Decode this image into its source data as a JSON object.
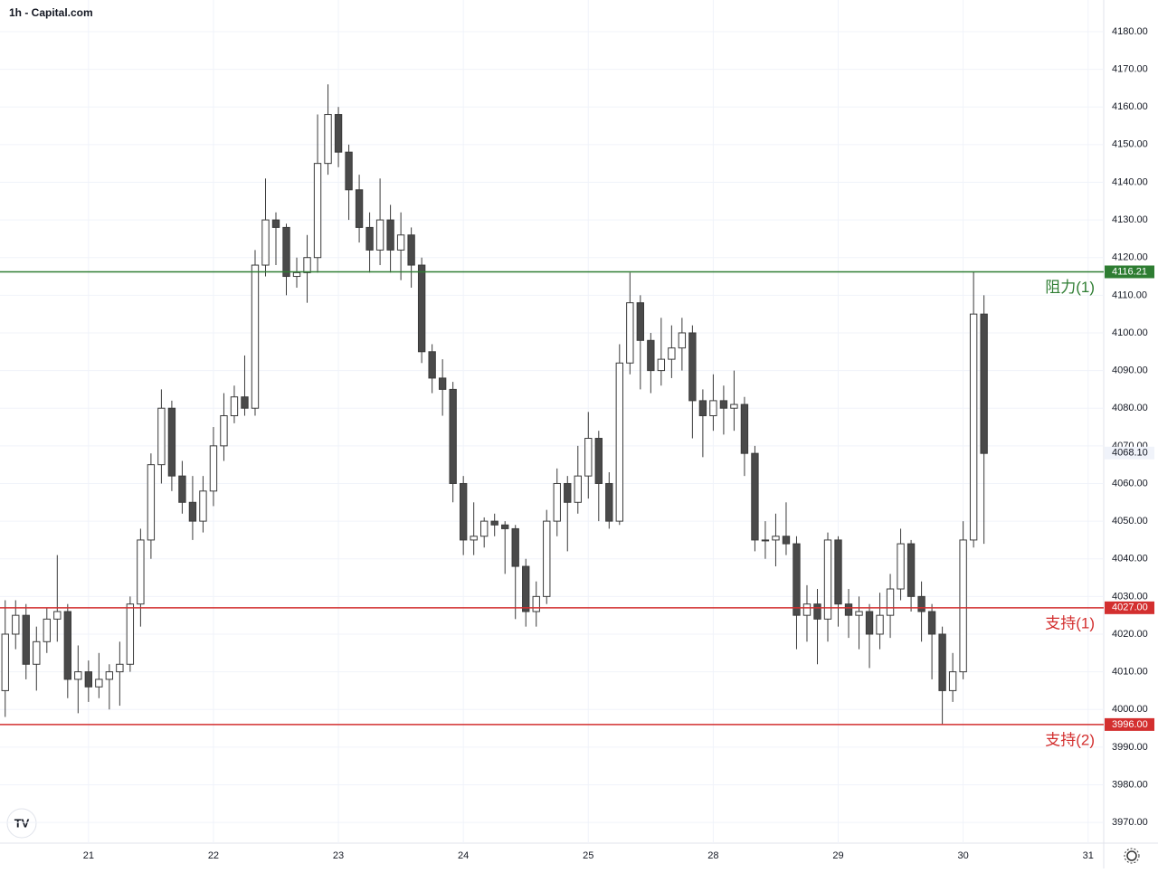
{
  "chart_data": {
    "type": "candlestick",
    "title": "1h - Capital.com",
    "open": [
      4005,
      4020,
      4025,
      4012,
      4018,
      4024,
      4026,
      4008,
      4010,
      4006,
      4008,
      4010,
      4012,
      4028,
      4045,
      4065,
      4080,
      4062,
      4055,
      4050,
      4058,
      4070,
      4078,
      4083,
      4080,
      4118,
      4130,
      4128,
      4115,
      4116,
      4120,
      4145,
      4158,
      4148,
      4138,
      4128,
      4122,
      4130,
      4122,
      4126,
      4118,
      4095,
      4088,
      4085,
      4060,
      4045,
      4046,
      4050,
      4049,
      4048,
      4038,
      4026,
      4030,
      4050,
      4060,
      4055,
      4062,
      4072,
      4060,
      4050,
      4092,
      4108,
      4098,
      4090,
      4093,
      4096,
      4100,
      4082,
      4078,
      4082,
      4080,
      4081,
      4068,
      4045,
      4045,
      4046,
      4044,
      4025,
      4028,
      4024,
      4045,
      4028,
      4025,
      4026,
      4020,
      4025,
      4032,
      4044,
      4030,
      4026,
      4020,
      4005,
      4010,
      4045,
      4105
    ],
    "high": [
      4029,
      4029,
      4028,
      4022,
      4027,
      4041,
      4028,
      4017,
      4013,
      4015,
      4012,
      4018,
      4030,
      4048,
      4068,
      4085,
      4082,
      4066,
      4062,
      4062,
      4075,
      4084,
      4086,
      4094,
      4122,
      4141,
      4132,
      4129,
      4120,
      4126,
      4158,
      4166,
      4160,
      4150,
      4142,
      4132,
      4141,
      4134,
      4132,
      4128,
      4120,
      4097,
      4093,
      4087,
      4062,
      4055,
      4051,
      4052,
      4050,
      4049,
      4040,
      4034,
      4053,
      4064,
      4062,
      4070,
      4079,
      4074,
      4063,
      4097,
      4116,
      4110,
      4100,
      4104,
      4102,
      4104,
      4102,
      4085,
      4089,
      4086,
      4090,
      4083,
      4070,
      4050,
      4052,
      4055,
      4046,
      4033,
      4032,
      4047,
      4046,
      4032,
      4030,
      4028,
      4031,
      4036,
      4048,
      4045,
      4034,
      4028,
      4022,
      4015,
      4050,
      4116.21,
      4110
    ],
    "low": [
      3998,
      4016,
      4008,
      4005,
      4015,
      4018,
      4003,
      3999,
      4002,
      4003,
      4000,
      4001,
      4010,
      4022,
      4040,
      4060,
      4058,
      4052,
      4045,
      4047,
      4054,
      4066,
      4076,
      4078,
      4078,
      4115,
      4118,
      4110,
      4112,
      4108,
      4116,
      4142,
      4144,
      4130,
      4124,
      4116,
      4118,
      4116,
      4114,
      4112,
      4092,
      4084,
      4078,
      4055,
      4041,
      4041,
      4043,
      4046,
      4036,
      4024,
      4022,
      4022,
      4028,
      4046,
      4042,
      4052,
      4056,
      4050,
      4048,
      4049,
      4089,
      4085,
      4084,
      4086,
      4088,
      4090,
      4072,
      4067,
      4074,
      4073,
      4074,
      4062,
      4042,
      4040,
      4038,
      4041,
      4016,
      4018,
      4012,
      4018,
      4022,
      4019,
      4016,
      4011,
      4016,
      4019,
      4029,
      4026,
      4018,
      4008,
      3996,
      4002,
      4008,
      4043,
      4044
    ],
    "close": [
      4020,
      4025,
      4012,
      4018,
      4024,
      4026,
      4008,
      4010,
      4006,
      4008,
      4010,
      4012,
      4028,
      4045,
      4065,
      4080,
      4062,
      4055,
      4050,
      4058,
      4070,
      4078,
      4083,
      4080,
      4118,
      4130,
      4128,
      4115,
      4116,
      4120,
      4145,
      4158,
      4148,
      4138,
      4128,
      4122,
      4130,
      4122,
      4126,
      4118,
      4095,
      4088,
      4085,
      4060,
      4045,
      4046,
      4050,
      4049,
      4048,
      4038,
      4026,
      4030,
      4050,
      4060,
      4055,
      4062,
      4072,
      4060,
      4050,
      4092,
      4108,
      4098,
      4090,
      4093,
      4096,
      4100,
      4082,
      4078,
      4082,
      4080,
      4081,
      4068,
      4045,
      4045,
      4046,
      4044,
      4025,
      4028,
      4024,
      4045,
      4028,
      4025,
      4026,
      4020,
      4025,
      4032,
      4044,
      4030,
      4026,
      4020,
      4005,
      4010,
      4045,
      4105,
      4068
    ],
    "up_color": "#ffffff",
    "down_color": "#4a4a4a",
    "wick_color": "#3a3a3a",
    "xlim": [
      -0.5,
      105.5
    ],
    "xticks": [
      {
        "value": 8,
        "label": "21"
      },
      {
        "value": 20,
        "label": "22"
      },
      {
        "value": 32,
        "label": "23"
      },
      {
        "value": 44,
        "label": "24"
      },
      {
        "value": 56,
        "label": "25"
      },
      {
        "value": 68,
        "label": "28"
      },
      {
        "value": 80,
        "label": "29"
      },
      {
        "value": 92,
        "label": "30"
      },
      {
        "value": 104,
        "label": "31"
      }
    ],
    "ylim": [
      3964.5,
      4188.4
    ],
    "yticks": [
      {
        "value": 3970,
        "label": "3970.00"
      },
      {
        "value": 3980,
        "label": "3980.00"
      },
      {
        "value": 3990,
        "label": "3990.00"
      },
      {
        "value": 4000,
        "label": "4000.00"
      },
      {
        "value": 4010,
        "label": "4010.00"
      },
      {
        "value": 4020,
        "label": "4020.00"
      },
      {
        "value": 4030,
        "label": "4030.00"
      },
      {
        "value": 4040,
        "label": "4040.00"
      },
      {
        "value": 4050,
        "label": "4050.00"
      },
      {
        "value": 4060,
        "label": "4060.00"
      },
      {
        "value": 4070,
        "label": "4070.00"
      },
      {
        "value": 4080,
        "label": "4080.00"
      },
      {
        "value": 4090,
        "label": "4090.00"
      },
      {
        "value": 4100,
        "label": "4100.00"
      },
      {
        "value": 4110,
        "label": "4110.00"
      },
      {
        "value": 4120,
        "label": "4120.00"
      },
      {
        "value": 4130,
        "label": "4130.00"
      },
      {
        "value": 4140,
        "label": "4140.00"
      },
      {
        "value": 4150,
        "label": "4150.00"
      },
      {
        "value": 4160,
        "label": "4160.00"
      },
      {
        "value": 4170,
        "label": "4170.00"
      },
      {
        "value": 4180,
        "label": "4180.00"
      }
    ],
    "grid": true,
    "levels": [
      {
        "name": "阻力(1)",
        "value": 4116.21,
        "label": "4116.21",
        "color": "#2e7d32"
      },
      {
        "name": "支持(1)",
        "value": 4027,
        "label": "4027.00",
        "color": "#d32f2f"
      },
      {
        "name": "支持(2)",
        "value": 3996,
        "label": "3996.00",
        "color": "#d32f2f"
      }
    ],
    "last_price": {
      "value": 4068.1,
      "label": "4068.10"
    }
  }
}
